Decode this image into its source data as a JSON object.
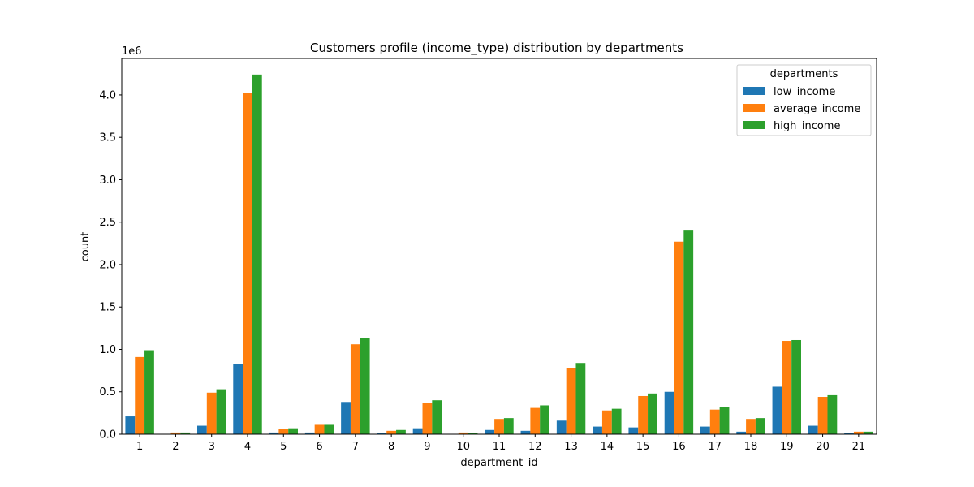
{
  "chart_data": {
    "type": "bar",
    "title": "Customers profile (income_type) distribution by departments",
    "xlabel": "department_id",
    "ylabel": "count",
    "y_offset_label": "1e6",
    "ylim": [
      0,
      4.43
    ],
    "yticks": [
      "0.0",
      "0.5",
      "1.0",
      "1.5",
      "2.0",
      "2.5",
      "3.0",
      "3.5",
      "4.0"
    ],
    "ytick_values": [
      0,
      0.5,
      1.0,
      1.5,
      2.0,
      2.5,
      3.0,
      3.5,
      4.0
    ],
    "grid": false,
    "legend": {
      "title": "departments",
      "placement": "top-right"
    },
    "categories": [
      "1",
      "2",
      "3",
      "4",
      "5",
      "6",
      "7",
      "8",
      "9",
      "10",
      "11",
      "12",
      "13",
      "14",
      "15",
      "16",
      "17",
      "18",
      "19",
      "20",
      "21"
    ],
    "series": [
      {
        "name": "low_income",
        "color": "#1f77b4",
        "values": [
          0.21,
          0.003,
          0.1,
          0.83,
          0.02,
          0.02,
          0.38,
          0.01,
          0.07,
          0.003,
          0.05,
          0.04,
          0.16,
          0.09,
          0.08,
          0.5,
          0.09,
          0.03,
          0.56,
          0.1,
          0.01
        ]
      },
      {
        "name": "average_income",
        "color": "#ff7f0e",
        "values": [
          0.91,
          0.02,
          0.49,
          4.02,
          0.06,
          0.12,
          1.06,
          0.04,
          0.37,
          0.02,
          0.18,
          0.31,
          0.78,
          0.28,
          0.45,
          2.27,
          0.29,
          0.18,
          1.1,
          0.44,
          0.03
        ]
      },
      {
        "name": "high_income",
        "color": "#2ca02c",
        "values": [
          0.99,
          0.02,
          0.53,
          4.24,
          0.07,
          0.12,
          1.13,
          0.05,
          0.4,
          0.01,
          0.19,
          0.34,
          0.84,
          0.3,
          0.48,
          2.41,
          0.32,
          0.19,
          1.11,
          0.46,
          0.03
        ]
      }
    ]
  }
}
